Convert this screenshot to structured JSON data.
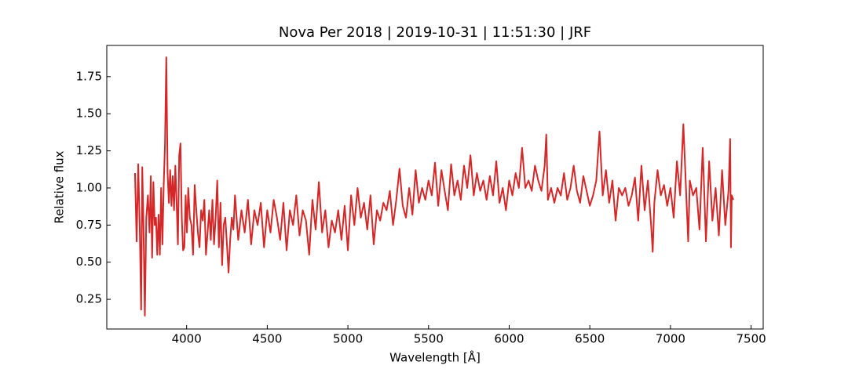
{
  "chart_data": {
    "type": "line",
    "title": "Nova Per 2018 | 2019-10-31 | 11:51:30 | JRF",
    "x_label": "Wavelength [Å]",
    "y_label": "Relative flux",
    "xlim": [
      3505,
      7575
    ],
    "ylim": [
      0.05,
      1.96
    ],
    "xticks": [
      4000,
      4500,
      5000,
      5500,
      6000,
      6500,
      7000,
      7500
    ],
    "yticks": [
      0.25,
      {
        "value": 0.5,
        "label": "0.50"
      },
      0.75,
      {
        "value": 1,
        "label": "1.00"
      },
      1.25,
      {
        "value": 1.5,
        "label": "1.50"
      },
      1.75
    ],
    "x": [
      3680,
      3690,
      3700,
      3710,
      3718,
      3725,
      3732,
      3741,
      3750,
      3760,
      3770,
      3778,
      3786,
      3794,
      3802,
      3810,
      3818,
      3826,
      3834,
      3842,
      3850,
      3858,
      3866,
      3874,
      3882,
      3890,
      3898,
      3906,
      3914,
      3922,
      3930,
      3938,
      3946,
      3954,
      3962,
      3970,
      3978,
      3986,
      3994,
      4002,
      4010,
      4020,
      4030,
      4040,
      4050,
      4060,
      4070,
      4080,
      4090,
      4100,
      4110,
      4120,
      4130,
      4140,
      4150,
      4160,
      4170,
      4180,
      4190,
      4200,
      4210,
      4220,
      4230,
      4240,
      4250,
      4260,
      4270,
      4280,
      4290,
      4300,
      4320,
      4340,
      4360,
      4380,
      4400,
      4420,
      4440,
      4460,
      4480,
      4500,
      4520,
      4540,
      4560,
      4580,
      4600,
      4620,
      4640,
      4660,
      4680,
      4700,
      4720,
      4740,
      4760,
      4780,
      4800,
      4820,
      4840,
      4860,
      4880,
      4900,
      4920,
      4940,
      4960,
      4980,
      5000,
      5020,
      5040,
      5060,
      5080,
      5100,
      5120,
      5140,
      5160,
      5180,
      5200,
      5220,
      5240,
      5260,
      5280,
      5300,
      5320,
      5340,
      5360,
      5380,
      5400,
      5420,
      5440,
      5460,
      5480,
      5500,
      5520,
      5540,
      5560,
      5580,
      5600,
      5620,
      5640,
      5660,
      5680,
      5700,
      5720,
      5740,
      5760,
      5780,
      5800,
      5820,
      5840,
      5860,
      5880,
      5900,
      5920,
      5940,
      5960,
      5980,
      6000,
      6020,
      6040,
      6060,
      6080,
      6100,
      6120,
      6140,
      6160,
      6180,
      6200,
      6220,
      6230,
      6240,
      6260,
      6280,
      6300,
      6320,
      6340,
      6360,
      6380,
      6400,
      6420,
      6440,
      6460,
      6480,
      6500,
      6520,
      6540,
      6560,
      6580,
      6600,
      6620,
      6640,
      6660,
      6680,
      6700,
      6720,
      6740,
      6760,
      6780,
      6800,
      6820,
      6840,
      6860,
      6880,
      6890,
      6900,
      6920,
      6940,
      6960,
      6980,
      7000,
      7020,
      7040,
      7060,
      7080,
      7100,
      7110,
      7120,
      7140,
      7160,
      7180,
      7200,
      7220,
      7240,
      7260,
      7280,
      7300,
      7320,
      7340,
      7360,
      7370,
      7375,
      7380,
      7390
    ],
    "series": [
      {
        "color": "#d62728",
        "values": [
          1.1,
          0.64,
          1.16,
          0.7,
          0.18,
          1.14,
          0.78,
          0.14,
          0.8,
          0.95,
          0.7,
          1.08,
          0.53,
          1.04,
          0.75,
          0.8,
          0.55,
          0.82,
          0.55,
          1.0,
          0.62,
          1.02,
          1.3,
          1.88,
          1.1,
          0.9,
          1.12,
          0.88,
          1.08,
          0.85,
          1.15,
          0.9,
          0.62,
          1.22,
          1.3,
          0.8,
          0.58,
          0.6,
          0.95,
          0.7,
          1.0,
          0.8,
          0.75,
          0.55,
          1.02,
          0.85,
          0.7,
          0.6,
          0.85,
          0.78,
          0.92,
          0.55,
          0.7,
          0.85,
          0.65,
          0.92,
          0.62,
          0.8,
          1.05,
          0.6,
          0.9,
          0.48,
          0.75,
          0.8,
          0.62,
          0.43,
          0.65,
          0.8,
          0.72,
          0.95,
          0.65,
          0.85,
          0.7,
          0.92,
          0.62,
          0.85,
          0.75,
          0.9,
          0.6,
          0.85,
          0.7,
          0.92,
          0.8,
          0.65,
          0.9,
          0.58,
          0.85,
          0.75,
          0.95,
          0.68,
          0.85,
          0.78,
          0.55,
          0.92,
          0.72,
          1.04,
          0.7,
          0.85,
          0.6,
          0.78,
          0.7,
          0.85,
          0.65,
          0.88,
          0.58,
          0.95,
          0.75,
          1.0,
          0.8,
          0.9,
          0.72,
          0.95,
          0.62,
          0.85,
          0.78,
          0.9,
          0.85,
          0.98,
          0.75,
          0.92,
          1.13,
          0.88,
          0.8,
          1.0,
          0.82,
          1.12,
          0.9,
          1.0,
          0.92,
          1.05,
          0.95,
          1.17,
          0.88,
          1.12,
          0.98,
          0.85,
          1.16,
          0.95,
          1.05,
          0.92,
          1.15,
          1.0,
          1.22,
          0.95,
          1.1,
          0.98,
          1.05,
          0.92,
          1.08,
          0.95,
          1.18,
          0.9,
          1.0,
          0.85,
          1.05,
          0.95,
          1.1,
          1.0,
          1.27,
          1.0,
          1.05,
          0.98,
          1.15,
          1.05,
          0.98,
          1.15,
          1.36,
          0.92,
          1.0,
          0.9,
          1.0,
          0.95,
          1.1,
          0.92,
          1.0,
          1.15,
          0.98,
          0.9,
          1.08,
          0.98,
          0.88,
          0.95,
          1.05,
          1.38,
          0.95,
          1.12,
          0.9,
          1.05,
          0.78,
          1.0,
          0.95,
          1.0,
          0.88,
          0.95,
          1.07,
          0.78,
          1.15,
          0.85,
          1.05,
          0.75,
          0.57,
          0.9,
          1.12,
          0.95,
          1.02,
          0.88,
          1.0,
          0.8,
          1.18,
          0.95,
          1.43,
          0.9,
          0.64,
          1.05,
          0.95,
          1.0,
          0.72,
          1.27,
          0.64,
          1.18,
          0.78,
          1.0,
          0.68,
          1.12,
          0.75,
          0.98,
          1.33,
          0.6,
          0.95,
          0.92
        ]
      }
    ]
  }
}
